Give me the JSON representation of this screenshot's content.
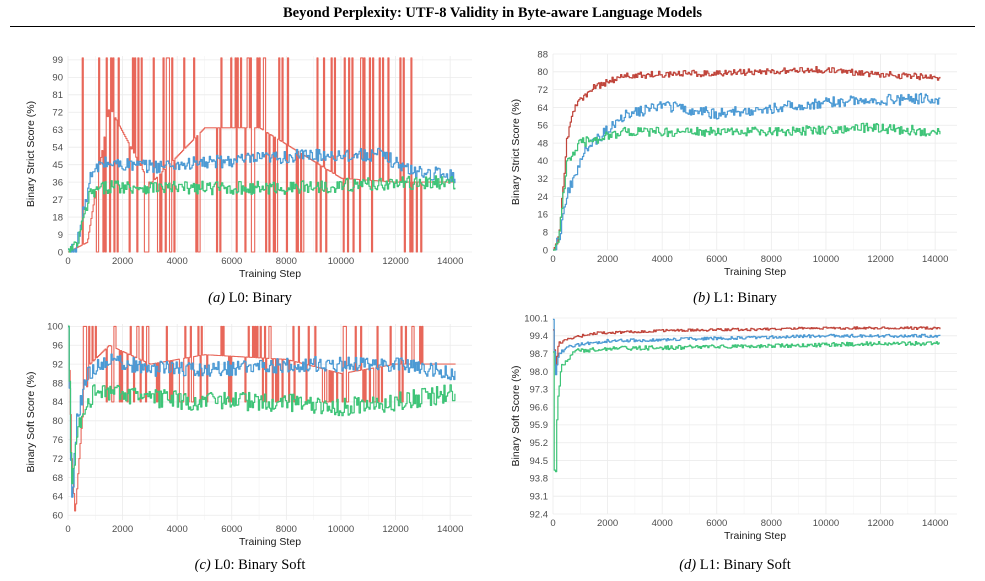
{
  "paper_title": "Beyond Perplexity: UTF-8 Validity in Byte-aware Language Models",
  "colors": {
    "red": "#e8675a",
    "darkred": "#c0453b",
    "blue": "#4c9ad4",
    "green": "#3fc478",
    "grid": "#ebebeb"
  },
  "chart_data": [
    {
      "type": "line",
      "caption_tag": "(a)",
      "caption_text": "L0: Binary",
      "xlabel": "Training Step",
      "ylabel": "Binary Strict Score (%)",
      "xlim": [
        0,
        14800
      ],
      "ylim": [
        0,
        101
      ],
      "xticks": [
        "0",
        "2000",
        "4000",
        "6000",
        "8000",
        "10000",
        "12000",
        "14000"
      ],
      "yticks": [
        "0",
        "9",
        "18",
        "27",
        "36",
        "45",
        "54",
        "63",
        "72",
        "81",
        "90",
        "99"
      ],
      "series": [
        {
          "color": "red",
          "kind": "spiky",
          "base": [
            [
              0,
              0
            ],
            [
              700,
              5
            ],
            [
              1500,
              75
            ],
            [
              3000,
              35
            ],
            [
              5000,
              64
            ],
            [
              7000,
              64
            ],
            [
              10000,
              38
            ],
            [
              12000,
              36
            ],
            [
              14200,
              36
            ]
          ],
          "spike_hi": 100,
          "spike_lo": 0,
          "freq": 0.35,
          "x_end": 14200
        },
        {
          "color": "blue",
          "kind": "noisy",
          "base": [
            [
              0,
              0
            ],
            [
              300,
              3
            ],
            [
              800,
              38
            ],
            [
              1200,
              46
            ],
            [
              3000,
              44
            ],
            [
              6000,
              47
            ],
            [
              9000,
              50
            ],
            [
              11500,
              50
            ],
            [
              12500,
              42
            ],
            [
              14200,
              39
            ]
          ],
          "noise": 3.5,
          "x_end": 14200
        },
        {
          "color": "green",
          "kind": "noisy",
          "base": [
            [
              0,
              0
            ],
            [
              300,
              3
            ],
            [
              800,
              30
            ],
            [
              1500,
              34
            ],
            [
              4000,
              33
            ],
            [
              8000,
              33
            ],
            [
              11000,
              35
            ],
            [
              14200,
              36
            ]
          ],
          "noise": 3.5,
          "x_end": 14200
        }
      ]
    },
    {
      "type": "line",
      "caption_tag": "(b)",
      "caption_text": "L1: Binary",
      "xlabel": "Training Step",
      "ylabel": "Binary Strict Score (%)",
      "xlim": [
        0,
        14800
      ],
      "ylim": [
        0,
        88
      ],
      "xticks": [
        "0",
        "2000",
        "4000",
        "6000",
        "8000",
        "10000",
        "12000",
        "14000"
      ],
      "yticks": [
        "0",
        "8",
        "16",
        "24",
        "32",
        "40",
        "48",
        "56",
        "64",
        "72",
        "80",
        "88"
      ],
      "series": [
        {
          "color": "darkred",
          "kind": "noisy",
          "base": [
            [
              0,
              0
            ],
            [
              200,
              5
            ],
            [
              500,
              50
            ],
            [
              800,
              65
            ],
            [
              1500,
              73
            ],
            [
              2500,
              78
            ],
            [
              4000,
              79
            ],
            [
              8000,
              80
            ],
            [
              9500,
              81
            ],
            [
              12000,
              79
            ],
            [
              14200,
              77
            ]
          ],
          "noise": 1.5,
          "x_end": 14200
        },
        {
          "color": "blue",
          "kind": "noisy",
          "base": [
            [
              0,
              0
            ],
            [
              200,
              5
            ],
            [
              500,
              25
            ],
            [
              1200,
              45
            ],
            [
              2500,
              60
            ],
            [
              4000,
              65
            ],
            [
              6000,
              61
            ],
            [
              9000,
              65
            ],
            [
              11000,
              67
            ],
            [
              14200,
              68
            ]
          ],
          "noise": 2.5,
          "x_end": 14200
        },
        {
          "color": "green",
          "kind": "noisy",
          "base": [
            [
              0,
              0
            ],
            [
              200,
              5
            ],
            [
              500,
              40
            ],
            [
              1000,
              48
            ],
            [
              2500,
              53
            ],
            [
              5000,
              53
            ],
            [
              8000,
              53
            ],
            [
              11500,
              55
            ],
            [
              14200,
              53
            ]
          ],
          "noise": 2.2,
          "x_end": 14200
        }
      ]
    },
    {
      "type": "line",
      "caption_tag": "(c)",
      "caption_text": "L0: Binary Soft",
      "xlabel": "Training Step",
      "ylabel": "Binary Soft Score (%)",
      "xlim": [
        0,
        14800
      ],
      "ylim": [
        59,
        100.5
      ],
      "xticks": [
        "0",
        "2000",
        "4000",
        "6000",
        "8000",
        "10000",
        "12000",
        "14000"
      ],
      "yticks": [
        "60",
        "64",
        "68",
        "72",
        "76",
        "80",
        "84",
        "88",
        "92",
        "96",
        "100"
      ],
      "series": [
        {
          "color": "red",
          "kind": "spiky",
          "base": [
            [
              0,
              100
            ],
            [
              120,
              72
            ],
            [
              250,
              60
            ],
            [
              500,
              80
            ],
            [
              800,
              92
            ],
            [
              1500,
              96
            ],
            [
              3000,
              92
            ],
            [
              5000,
              94
            ],
            [
              8000,
              93
            ],
            [
              10000,
              90
            ],
            [
              12000,
              92
            ],
            [
              14200,
              92
            ]
          ],
          "spike_hi": 100,
          "spike_lo": 84,
          "freq": 0.3,
          "x_end": 14200
        },
        {
          "color": "blue",
          "kind": "noisy",
          "base": [
            [
              0,
              100
            ],
            [
              120,
              61
            ],
            [
              300,
              80
            ],
            [
              700,
              90
            ],
            [
              1500,
              93
            ],
            [
              3000,
              91
            ],
            [
              6000,
              91
            ],
            [
              9000,
              92
            ],
            [
              12000,
              92
            ],
            [
              14200,
              90
            ]
          ],
          "noise": 1.6,
          "x_end": 14200
        },
        {
          "color": "green",
          "kind": "noisy",
          "base": [
            [
              0,
              100
            ],
            [
              120,
              66
            ],
            [
              400,
              80
            ],
            [
              1000,
              87
            ],
            [
              2500,
              85
            ],
            [
              5000,
              84
            ],
            [
              8000,
              84
            ],
            [
              10000,
              83
            ],
            [
              12000,
              84
            ],
            [
              13000,
              85
            ],
            [
              14200,
              86
            ]
          ],
          "noise": 2.0,
          "x_end": 14200
        }
      ]
    },
    {
      "type": "line",
      "caption_tag": "(d)",
      "caption_text": "L1: Binary Soft",
      "xlabel": "Training Step",
      "ylabel": "Binary Soft Score (%)",
      "xlim": [
        0,
        14800
      ],
      "ylim": [
        92.4,
        100.1
      ],
      "xticks": [
        "0",
        "2000",
        "4000",
        "6000",
        "8000",
        "10000",
        "12000",
        "14000"
      ],
      "yticks": [
        "92.4",
        "93.1",
        "93.8",
        "94.5",
        "95.2",
        "95.9",
        "96.6",
        "97.3",
        "98.0",
        "98.7",
        "99.4",
        "100.1"
      ],
      "series": [
        {
          "color": "darkred",
          "kind": "noisy",
          "base": [
            [
              0,
              99.6
            ],
            [
              80,
              98.2
            ],
            [
              200,
              99.1
            ],
            [
              600,
              99.3
            ],
            [
              1500,
              99.5
            ],
            [
              4000,
              99.6
            ],
            [
              10000,
              99.7
            ],
            [
              14200,
              99.7
            ]
          ],
          "noise": 0.05,
          "x_end": 14200
        },
        {
          "color": "blue",
          "kind": "noisy",
          "base": [
            [
              0,
              100.0
            ],
            [
              80,
              97.8
            ],
            [
              200,
              98.7
            ],
            [
              600,
              99.0
            ],
            [
              2000,
              99.2
            ],
            [
              6000,
              99.3
            ],
            [
              10000,
              99.4
            ],
            [
              14200,
              99.4
            ]
          ],
          "noise": 0.06,
          "x_end": 14200
        },
        {
          "color": "green",
          "kind": "noisy",
          "base": [
            [
              0,
              98.7
            ],
            [
              60,
              92.6
            ],
            [
              150,
              96.8
            ],
            [
              300,
              98.2
            ],
            [
              800,
              98.8
            ],
            [
              2000,
              98.9
            ],
            [
              8000,
              99.0
            ],
            [
              12000,
              99.1
            ],
            [
              14200,
              99.1
            ]
          ],
          "noise": 0.08,
          "x_end": 14200
        }
      ]
    }
  ]
}
